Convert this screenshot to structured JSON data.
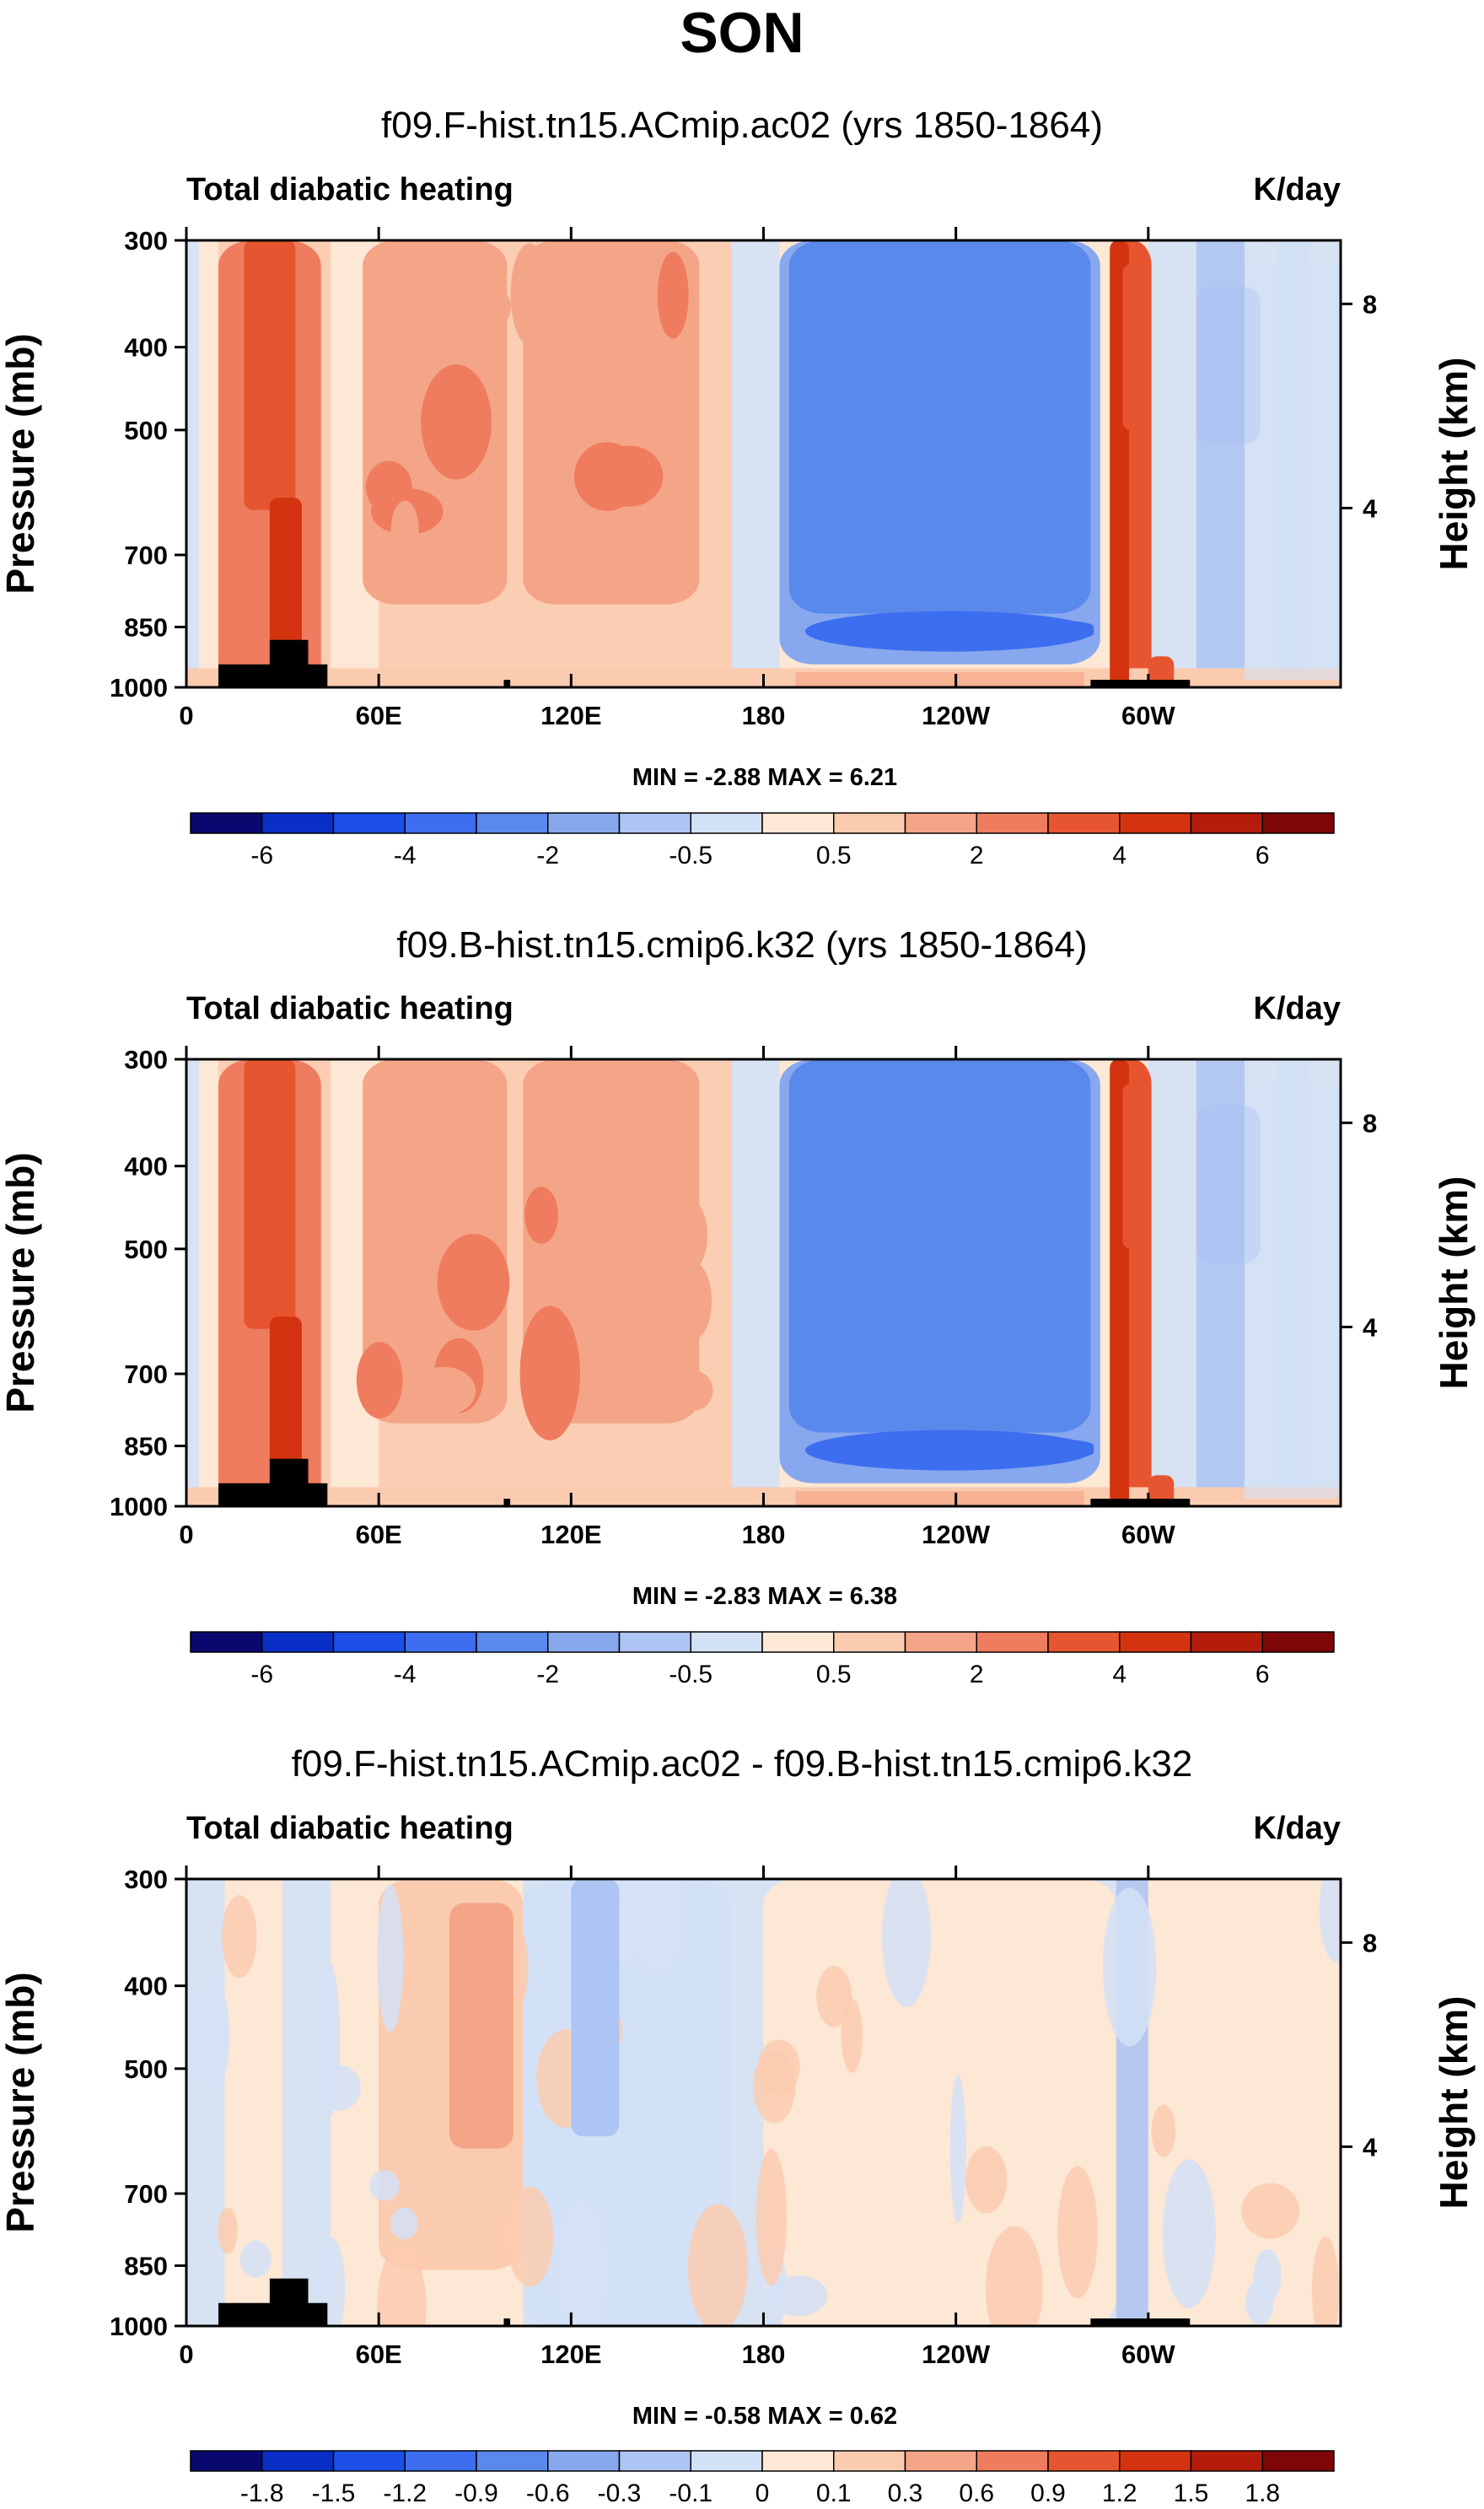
{
  "page_title": "SON",
  "colors": {
    "land": "#000000",
    "frame": "#000000"
  },
  "chart_data": [
    {
      "type": "heatmap",
      "kind": "pressure-longitude cross section (contour fill)",
      "title": "f09.F-hist.tn15.ACmip.ac02 (yrs 1850-1864)",
      "left_label": "Total diabatic heating",
      "right_label": "K/day",
      "ylabel": "Pressure (mb)",
      "ylabel_right": "Height (km)",
      "x_range_deg_east": [
        0,
        360
      ],
      "x_ticks": [
        {
          "lon": 0,
          "label": "0"
        },
        {
          "lon": 60,
          "label": "60E"
        },
        {
          "lon": 120,
          "label": "120E"
        },
        {
          "lon": 180,
          "label": "180"
        },
        {
          "lon": 240,
          "label": "120W"
        },
        {
          "lon": 300,
          "label": "60W"
        }
      ],
      "y_range_mb": [
        1000,
        300
      ],
      "y_ticks": [
        {
          "p": 300,
          "label": "300"
        },
        {
          "p": 400,
          "label": "400"
        },
        {
          "p": 500,
          "label": "500"
        },
        {
          "p": 700,
          "label": "700"
        },
        {
          "p": 850,
          "label": "850"
        },
        {
          "p": 1000,
          "label": "1000"
        }
      ],
      "y_ticks_right": [
        {
          "p": 356,
          "label": "8"
        },
        {
          "p": 617,
          "label": "4"
        }
      ],
      "min_max_text": "MIN = -2.88  MAX =  6.21",
      "min": -2.88,
      "max": 6.21,
      "colorbar": {
        "colors": [
          "#08086e",
          "#0a2fc7",
          "#1c4fe8",
          "#3d6ef0",
          "#5a89ec",
          "#87a8ee",
          "#aec4f2",
          "#d3e1f6",
          "#fde7d5",
          "#fbcbb0",
          "#f5a587",
          "#ef7c5e",
          "#e6552f",
          "#d43310",
          "#b41c0b",
          "#7f0606"
        ],
        "labels": [
          {
            "edge": 1,
            "label": "-6"
          },
          {
            "edge": 3,
            "label": "-4"
          },
          {
            "edge": 5,
            "label": "-2"
          },
          {
            "edge": 7,
            "label": "-0.5"
          },
          {
            "edge": 9,
            "label": "0.5"
          },
          {
            "edge": 11,
            "label": "2"
          },
          {
            "edge": 13,
            "label": "4"
          },
          {
            "edge": 15,
            "label": "6"
          }
        ]
      },
      "features": [
        {
          "name": "subsidence minimum",
          "lon": [
            185,
            285
          ],
          "p": [
            300,
            940
          ],
          "level": 5
        },
        {
          "name": "strong cooling core",
          "lon": [
            196,
            283
          ],
          "p": [
            835,
            880
          ],
          "level": 3
        },
        {
          "name": "heating 20-40E",
          "lon": [
            10,
            42
          ],
          "p": [
            300,
            1000
          ],
          "level": 11
        },
        {
          "name": "heating 60-100E",
          "lon": [
            55,
            100
          ],
          "p": [
            300,
            800
          ],
          "level": 10
        },
        {
          "name": "heating 100-160E",
          "lon": [
            105,
            160
          ],
          "p": [
            300,
            800
          ],
          "level": 10
        },
        {
          "name": "heating near 65W",
          "lon": [
            289,
            301
          ],
          "p": [
            300,
            1000
          ],
          "level": 12
        }
      ],
      "orography": [
        {
          "lon": [
            10,
            44
          ],
          "p_top": 940
        },
        {
          "lon": [
            26,
            38
          ],
          "p_top": 880
        },
        {
          "lon": [
            99,
            101
          ],
          "p_top": 980
        },
        {
          "lon": [
            282,
            313
          ],
          "p_top": 980
        }
      ]
    },
    {
      "type": "heatmap",
      "kind": "pressure-longitude cross section (contour fill)",
      "title": "f09.B-hist.tn15.cmip6.k32 (yrs 1850-1864)",
      "left_label": "Total diabatic heating",
      "right_label": "K/day",
      "ylabel": "Pressure (mb)",
      "ylabel_right": "Height (km)",
      "x_range_deg_east": [
        0,
        360
      ],
      "x_ticks": [
        {
          "lon": 0,
          "label": "0"
        },
        {
          "lon": 60,
          "label": "60E"
        },
        {
          "lon": 120,
          "label": "120E"
        },
        {
          "lon": 180,
          "label": "180"
        },
        {
          "lon": 240,
          "label": "120W"
        },
        {
          "lon": 300,
          "label": "60W"
        }
      ],
      "y_range_mb": [
        1000,
        300
      ],
      "y_ticks": [
        {
          "p": 300,
          "label": "300"
        },
        {
          "p": 400,
          "label": "400"
        },
        {
          "p": 500,
          "label": "500"
        },
        {
          "p": 700,
          "label": "700"
        },
        {
          "p": 850,
          "label": "850"
        },
        {
          "p": 1000,
          "label": "1000"
        }
      ],
      "y_ticks_right": [
        {
          "p": 356,
          "label": "8"
        },
        {
          "p": 617,
          "label": "4"
        }
      ],
      "min_max_text": "MIN = -2.83  MAX =  6.38",
      "min": -2.83,
      "max": 6.38,
      "colorbar": {
        "colors": [
          "#08086e",
          "#0a2fc7",
          "#1c4fe8",
          "#3d6ef0",
          "#5a89ec",
          "#87a8ee",
          "#aec4f2",
          "#d3e1f6",
          "#fde7d5",
          "#fbcbb0",
          "#f5a587",
          "#ef7c5e",
          "#e6552f",
          "#d43310",
          "#b41c0b",
          "#7f0606"
        ],
        "labels": [
          {
            "edge": 1,
            "label": "-6"
          },
          {
            "edge": 3,
            "label": "-4"
          },
          {
            "edge": 5,
            "label": "-2"
          },
          {
            "edge": 7,
            "label": "-0.5"
          },
          {
            "edge": 9,
            "label": "0.5"
          },
          {
            "edge": 11,
            "label": "2"
          },
          {
            "edge": 13,
            "label": "4"
          },
          {
            "edge": 15,
            "label": "6"
          }
        ]
      },
      "features": [
        {
          "name": "subsidence minimum",
          "lon": [
            185,
            285
          ],
          "p": [
            300,
            940
          ],
          "level": 5
        },
        {
          "name": "strong cooling core",
          "lon": [
            196,
            283
          ],
          "p": [
            835,
            880
          ],
          "level": 3
        },
        {
          "name": "heating 20-40E",
          "lon": [
            10,
            42
          ],
          "p": [
            300,
            1000
          ],
          "level": 11
        },
        {
          "name": "heating 60-100E",
          "lon": [
            55,
            100
          ],
          "p": [
            300,
            800
          ],
          "level": 10
        },
        {
          "name": "heating 100-160E",
          "lon": [
            105,
            160
          ],
          "p": [
            300,
            800
          ],
          "level": 10
        },
        {
          "name": "heating near 65W",
          "lon": [
            289,
            301
          ],
          "p": [
            300,
            1000
          ],
          "level": 12
        }
      ],
      "orography": [
        {
          "lon": [
            10,
            44
          ],
          "p_top": 940
        },
        {
          "lon": [
            26,
            38
          ],
          "p_top": 880
        },
        {
          "lon": [
            99,
            101
          ],
          "p_top": 980
        },
        {
          "lon": [
            282,
            313
          ],
          "p_top": 980
        }
      ]
    },
    {
      "type": "heatmap",
      "kind": "pressure-longitude cross section difference (contour fill)",
      "title": "f09.F-hist.tn15.ACmip.ac02 - f09.B-hist.tn15.cmip6.k32",
      "left_label": "Total diabatic heating",
      "right_label": "K/day",
      "ylabel": "Pressure (mb)",
      "ylabel_right": "Height (km)",
      "x_range_deg_east": [
        0,
        360
      ],
      "x_ticks": [
        {
          "lon": 0,
          "label": "0"
        },
        {
          "lon": 60,
          "label": "60E"
        },
        {
          "lon": 120,
          "label": "120E"
        },
        {
          "lon": 180,
          "label": "180"
        },
        {
          "lon": 240,
          "label": "120W"
        },
        {
          "lon": 300,
          "label": "60W"
        }
      ],
      "y_range_mb": [
        1000,
        300
      ],
      "y_ticks": [
        {
          "p": 300,
          "label": "300"
        },
        {
          "p": 400,
          "label": "400"
        },
        {
          "p": 500,
          "label": "500"
        },
        {
          "p": 700,
          "label": "700"
        },
        {
          "p": 850,
          "label": "850"
        },
        {
          "p": 1000,
          "label": "1000"
        }
      ],
      "y_ticks_right": [
        {
          "p": 356,
          "label": "8"
        },
        {
          "p": 617,
          "label": "4"
        }
      ],
      "min_max_text": "MIN = -0.58  MAX =  0.62",
      "min": -0.58,
      "max": 0.62,
      "colorbar": {
        "colors": [
          "#08086e",
          "#0a2fc7",
          "#1c4fe8",
          "#3d6ef0",
          "#5a89ec",
          "#87a8ee",
          "#aec4f2",
          "#d3e1f6",
          "#fde7d5",
          "#fbcbb0",
          "#f5a587",
          "#ef7c5e",
          "#e6552f",
          "#d43310",
          "#b41c0b",
          "#7f0606"
        ],
        "labels": [
          {
            "edge": 1,
            "label": "-1.8"
          },
          {
            "edge": 2,
            "label": "-1.5"
          },
          {
            "edge": 3,
            "label": "-1.2"
          },
          {
            "edge": 4,
            "label": "-0.9"
          },
          {
            "edge": 5,
            "label": "-0.6"
          },
          {
            "edge": 6,
            "label": "-0.3"
          },
          {
            "edge": 7,
            "label": "-0.1"
          },
          {
            "edge": 8,
            "label": "0"
          },
          {
            "edge": 9,
            "label": "0.1"
          },
          {
            "edge": 10,
            "label": "0.3"
          },
          {
            "edge": 11,
            "label": "0.6"
          },
          {
            "edge": 12,
            "label": "0.9"
          },
          {
            "edge": 13,
            "label": "1.2"
          },
          {
            "edge": 14,
            "label": "1.5"
          },
          {
            "edge": 15,
            "label": "1.8"
          }
        ]
      },
      "features": [
        {
          "name": "warm anomaly 60-105E",
          "lon": [
            60,
            105
          ],
          "p": [
            300,
            860
          ],
          "level": 9
        },
        {
          "name": "weak cooling 105-170E",
          "lon": [
            105,
            170
          ],
          "p": [
            300,
            1000
          ],
          "level": 7
        },
        {
          "name": "weak positive east Pacific",
          "lon": [
            180,
            290
          ],
          "p": [
            300,
            1000
          ],
          "level": 8
        }
      ],
      "orography": [
        {
          "lon": [
            10,
            44
          ],
          "p_top": 940
        },
        {
          "lon": [
            26,
            38
          ],
          "p_top": 880
        },
        {
          "lon": [
            99,
            101
          ],
          "p_top": 980
        },
        {
          "lon": [
            282,
            313
          ],
          "p_top": 980
        }
      ]
    }
  ]
}
